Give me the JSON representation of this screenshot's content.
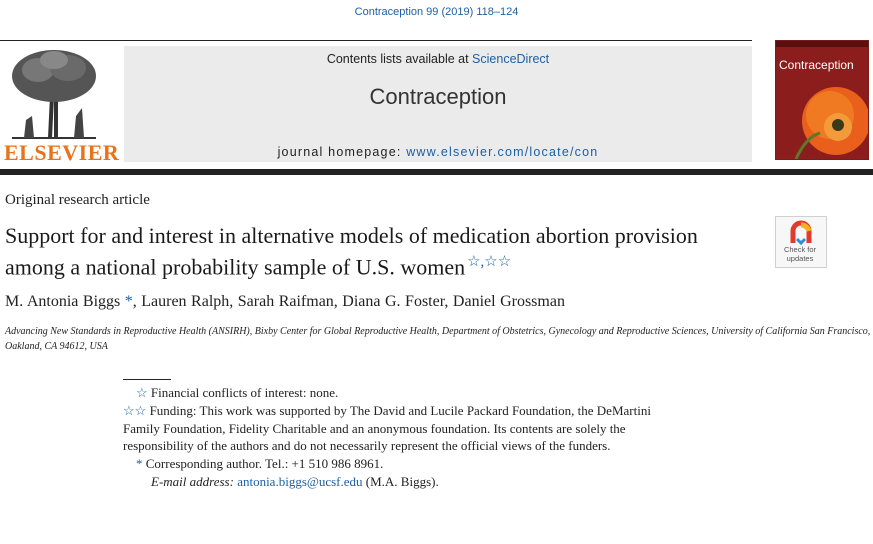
{
  "header": {
    "citation": "Contraception 99 (2019) 118–124",
    "contents_prefix": "Contents lists available at ",
    "contents_link": "ScienceDirect",
    "journal_title": "Contraception",
    "homepage_prefix": "journal homepage: ",
    "homepage_link": "www.elsevier.com/locate/con",
    "publisher": "ELSEVIER",
    "cover_title": "Contraception"
  },
  "badge": {
    "line1": "Check for",
    "line2": "updates"
  },
  "article": {
    "type": "Original research article",
    "title": "Support for and interest in alternative models of medication abortion provision among a national probability sample of U.S. women",
    "title_marks": "☆,☆☆",
    "authors": [
      {
        "name": "M. Antonia Biggs",
        "mark": "*"
      },
      {
        "name": "Lauren Ralph",
        "mark": ""
      },
      {
        "name": "Sarah Raifman",
        "mark": ""
      },
      {
        "name": "Diana G. Foster",
        "mark": ""
      },
      {
        "name": "Daniel Grossman",
        "mark": ""
      }
    ],
    "affiliation": "Advancing New Standards in Reproductive Health (ANSIRH), Bixby Center for Global Reproductive Health, Department of Obstetrics, Gynecology and Reproductive Sciences, University of California San Francisco, Oakland, CA 94612, USA"
  },
  "footnotes": {
    "fn1_mark": "☆",
    "fn1_text": "Financial conflicts of interest: none.",
    "fn2_mark": "☆☆",
    "fn2_text": "Funding: This work was supported by The David and Lucile Packard Foundation, the DeMartini Family Foundation, Fidelity Charitable and an anonymous foundation. Its contents are solely the responsibility of the authors and do not necessarily represent the official views of the funders.",
    "fn3_mark": "*",
    "fn3_text": "Corresponding author. Tel.: +1 510 986 8961.",
    "email_label": "E-mail address:",
    "email": "antonia.biggs@ucsf.edu",
    "email_suffix": "(M.A. Biggs)."
  },
  "colors": {
    "link": "#1f5fa0",
    "publisher": "#e8731a",
    "cover": "#8c1d1d"
  }
}
